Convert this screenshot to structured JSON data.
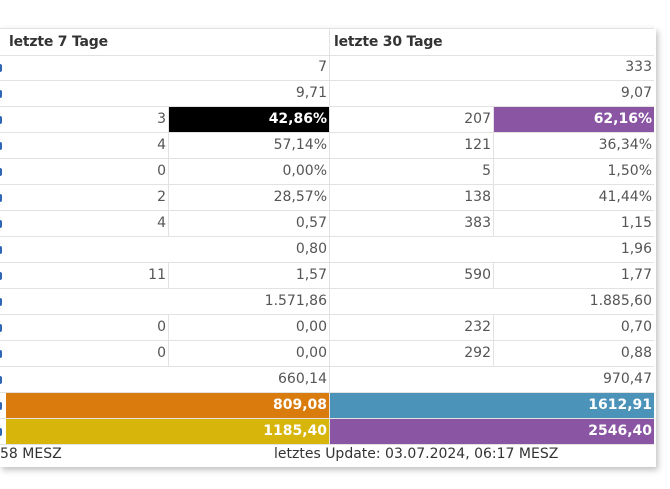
{
  "header": {
    "col_7": "letzte 7 Tage",
    "col_30": "letzte 30 Tage"
  },
  "rows": [
    {
      "c7a": "",
      "c7b": "7",
      "c30a": "",
      "c30b": "333",
      "hl7": "",
      "hl30": ""
    },
    {
      "c7a": "",
      "c7b": "9,71",
      "c30a": "",
      "c30b": "9,07",
      "hl7": "",
      "hl30": ""
    },
    {
      "c7a": "3",
      "c7b": "42,86%",
      "c30a": "207",
      "c30b": "62,16%",
      "hl7": "#000000",
      "hl30": "#8a55a3"
    },
    {
      "c7a": "4",
      "c7b": "57,14%",
      "c30a": "121",
      "c30b": "36,34%",
      "hl7": "",
      "hl30": ""
    },
    {
      "c7a": "0",
      "c7b": "0,00%",
      "c30a": "5",
      "c30b": "1,50%",
      "hl7": "",
      "hl30": ""
    },
    {
      "c7a": "2",
      "c7b": "28,57%",
      "c30a": "138",
      "c30b": "41,44%",
      "hl7": "",
      "hl30": ""
    },
    {
      "c7a": "4",
      "c7b": "0,57",
      "c30a": "383",
      "c30b": "1,15",
      "hl7": "",
      "hl30": ""
    },
    {
      "c7a": "",
      "c7b": "0,80",
      "c30a": "",
      "c30b": "1,96",
      "hl7": "",
      "hl30": ""
    },
    {
      "c7a": "11",
      "c7b": "1,57",
      "c30a": "590",
      "c30b": "1,77",
      "hl7": "",
      "hl30": ""
    },
    {
      "c7a": "",
      "c7b": "1.571,86",
      "c30a": "",
      "c30b": "1.885,60",
      "hl7": "",
      "hl30": ""
    },
    {
      "c7a": "0",
      "c7b": "0,00",
      "c30a": "232",
      "c30b": "0,70",
      "hl7": "",
      "hl30": ""
    },
    {
      "c7a": "0",
      "c7b": "0,00",
      "c30a": "292",
      "c30b": "0,88",
      "hl7": "",
      "hl30": ""
    },
    {
      "c7a": "",
      "c7b": "660,14",
      "c30a": "",
      "c30b": "970,47",
      "hl7": "",
      "hl30": ""
    },
    {
      "c7a": "",
      "c7b": "809,08",
      "c30a": "",
      "c30b": "1612,91",
      "hl7": "#d97b0d",
      "hl30": "#4b93b9",
      "full": true
    },
    {
      "c7a": "",
      "c7b": "1185,40",
      "c30a": "",
      "c30b": "2546,40",
      "hl7": "#d8b50a",
      "hl30": "#8a55a3",
      "full": true
    }
  ],
  "footer": {
    "left_fragment": "58 MESZ",
    "update": "letztes Update: 03.07.2024, 06:17 MESZ"
  },
  "colors": {
    "edge_marker": "#2f66b3",
    "grid_line": "#e2e2e2"
  }
}
